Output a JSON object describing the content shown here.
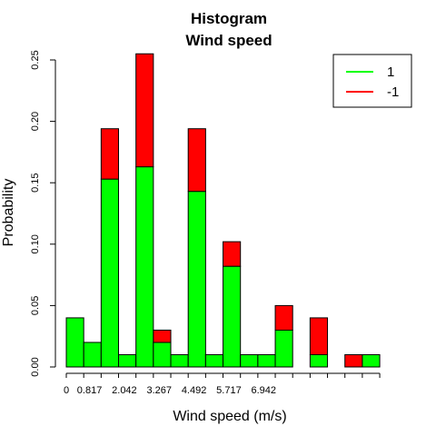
{
  "chart_data": {
    "type": "bar",
    "title": "Histogram",
    "subtitle": "Wind speed",
    "xlabel": "Wind speed (m/s)",
    "ylabel": "Probability",
    "stacked": true,
    "bin_width": 0.6125,
    "xlim": [
      0,
      7.35
    ],
    "ylim": [
      0,
      0.25
    ],
    "x_ticks": [
      0,
      0.817,
      2.042,
      3.267,
      4.492,
      5.717,
      6.942
    ],
    "y_ticks": [
      0.0,
      0.05,
      0.1,
      0.15,
      0.2,
      0.25
    ],
    "x_tick_labels": [
      "0",
      "0.817",
      "2.042",
      "3.267",
      "4.492",
      "5.717",
      "6.942"
    ],
    "y_tick_labels": [
      "0.00",
      "0.05",
      "0.10",
      "0.15",
      "0.20",
      "0.25"
    ],
    "bin_starts": [
      0,
      0.6125,
      1.225,
      1.8375,
      2.45,
      3.0625,
      3.675,
      4.2875,
      4.9,
      5.5125,
      6.125,
      6.7375,
      7.35,
      7.9625,
      8.575,
      9.1875,
      9.8,
      10.4125
    ],
    "series": [
      {
        "name": "1",
        "color": "#00ff00",
        "values": [
          0.04,
          0.02,
          0.153,
          0.01,
          0.163,
          0.02,
          0.01,
          0.143,
          0.01,
          0.082,
          0.01,
          0.01,
          0.03,
          0.0,
          0.01,
          0.0,
          0.0,
          0.01
        ]
      },
      {
        "name": "-1",
        "color": "#ff0000",
        "values": [
          0.0,
          0.0,
          0.041,
          0.0,
          0.092,
          0.01,
          0.0,
          0.051,
          0.0,
          0.02,
          0.0,
          0.0,
          0.02,
          0.0,
          0.03,
          0.0,
          0.01,
          0.0
        ]
      }
    ],
    "legend_position": "top-right"
  }
}
